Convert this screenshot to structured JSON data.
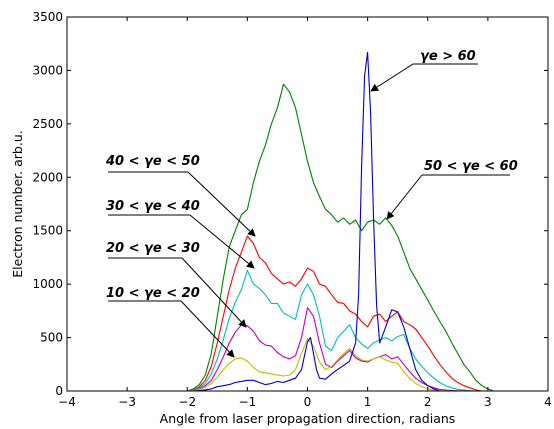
{
  "chart_data": {
    "type": "line",
    "title": "",
    "xlabel": "Angle from laser propagation direction, radians",
    "ylabel": "Electron number. arb.u.",
    "xlim": [
      -4,
      4
    ],
    "ylim": [
      0,
      3500
    ],
    "xticks": [
      -4,
      -3,
      -2,
      -1,
      0,
      1,
      2,
      3,
      4
    ],
    "xtick_labels": [
      "−4",
      "−3",
      "−2",
      "−1",
      "0",
      "1",
      "2",
      "3",
      "4"
    ],
    "yticks": [
      0,
      500,
      1000,
      1500,
      2000,
      2500,
      3000,
      3500
    ],
    "ytick_labels": [
      "0",
      "500",
      "1000",
      "1500",
      "2000",
      "2500",
      "3000",
      "3500"
    ],
    "grid": false,
    "legend": "none",
    "series": [
      {
        "name": "50 < γe < 60",
        "color": "#008000",
        "x": [
          -3.2,
          -2.0,
          -1.9,
          -1.8,
          -1.7,
          -1.6,
          -1.5,
          -1.4,
          -1.3,
          -1.2,
          -1.1,
          -1.0,
          -0.9,
          -0.8,
          -0.7,
          -0.6,
          -0.5,
          -0.4,
          -0.3,
          -0.2,
          -0.1,
          0.0,
          0.1,
          0.2,
          0.3,
          0.4,
          0.5,
          0.6,
          0.7,
          0.8,
          0.9,
          1.0,
          1.1,
          1.2,
          1.3,
          1.4,
          1.5,
          1.6,
          1.7,
          1.8,
          1.9,
          2.0,
          2.1,
          2.2,
          2.3,
          2.4,
          2.5,
          2.6,
          2.7,
          2.8,
          2.9,
          3.0,
          3.1
        ],
        "y": [
          0,
          0,
          20,
          60,
          150,
          350,
          700,
          1050,
          1350,
          1500,
          1650,
          1700,
          1950,
          2150,
          2300,
          2500,
          2650,
          2870,
          2800,
          2650,
          2400,
          2150,
          1950,
          1820,
          1700,
          1650,
          1580,
          1620,
          1560,
          1600,
          1500,
          1580,
          1600,
          1560,
          1620,
          1550,
          1450,
          1300,
          1150,
          1050,
          950,
          850,
          750,
          650,
          560,
          450,
          350,
          250,
          180,
          100,
          50,
          20,
          0
        ]
      },
      {
        "name": "40 < γe < 50",
        "color": "#ff0000",
        "x": [
          -3.2,
          -2.0,
          -1.9,
          -1.8,
          -1.7,
          -1.6,
          -1.5,
          -1.4,
          -1.3,
          -1.2,
          -1.1,
          -1.0,
          -0.9,
          -0.8,
          -0.7,
          -0.6,
          -0.5,
          -0.4,
          -0.3,
          -0.2,
          -0.1,
          0.0,
          0.1,
          0.2,
          0.3,
          0.4,
          0.5,
          0.6,
          0.7,
          0.8,
          0.9,
          1.0,
          1.1,
          1.2,
          1.3,
          1.4,
          1.5,
          1.6,
          1.7,
          1.8,
          1.9,
          2.0,
          2.1,
          2.2,
          2.3,
          2.4,
          2.5,
          2.6,
          2.7,
          2.8,
          2.9
        ],
        "y": [
          0,
          0,
          10,
          40,
          100,
          230,
          450,
          700,
          950,
          1150,
          1300,
          1450,
          1380,
          1250,
          1200,
          1100,
          1050,
          1000,
          1020,
          980,
          1050,
          1150,
          1120,
          1000,
          980,
          900,
          830,
          820,
          750,
          720,
          650,
          600,
          700,
          720,
          650,
          700,
          740,
          650,
          620,
          580,
          500,
          420,
          330,
          250,
          180,
          120,
          80,
          50,
          30,
          10,
          0
        ]
      },
      {
        "name": "30 < γe < 40",
        "color": "#00bfbf",
        "x": [
          -3.2,
          -2.0,
          -1.9,
          -1.8,
          -1.7,
          -1.6,
          -1.5,
          -1.4,
          -1.3,
          -1.2,
          -1.1,
          -1.0,
          -0.9,
          -0.8,
          -0.7,
          -0.6,
          -0.5,
          -0.4,
          -0.3,
          -0.2,
          -0.1,
          0.0,
          0.1,
          0.2,
          0.3,
          0.4,
          0.5,
          0.6,
          0.7,
          0.8,
          0.9,
          1.0,
          1.1,
          1.2,
          1.3,
          1.4,
          1.5,
          1.6,
          1.7,
          1.8,
          1.9,
          2.0,
          2.1,
          2.2,
          2.3,
          2.4,
          2.5,
          2.6,
          2.7,
          2.8
        ],
        "y": [
          0,
          0,
          10,
          30,
          70,
          160,
          300,
          480,
          680,
          830,
          950,
          1130,
          1000,
          960,
          900,
          820,
          820,
          730,
          700,
          670,
          900,
          1000,
          900,
          700,
          420,
          380,
          500,
          560,
          620,
          500,
          440,
          400,
          450,
          480,
          500,
          470,
          510,
          530,
          400,
          300,
          230,
          170,
          120,
          80,
          50,
          30,
          15,
          10,
          5,
          0
        ]
      },
      {
        "name": "20 < γe < 30",
        "color": "#bf00bf",
        "x": [
          -3.2,
          -2.0,
          -1.9,
          -1.8,
          -1.7,
          -1.6,
          -1.5,
          -1.4,
          -1.3,
          -1.2,
          -1.1,
          -1.0,
          -0.9,
          -0.8,
          -0.7,
          -0.6,
          -0.5,
          -0.4,
          -0.3,
          -0.2,
          -0.1,
          0.0,
          0.1,
          0.2,
          0.3,
          0.4,
          0.5,
          0.6,
          0.7,
          0.8,
          0.9,
          1.0,
          1.1,
          1.2,
          1.3,
          1.4,
          1.5,
          1.6,
          1.7,
          1.8,
          1.9,
          2.0,
          2.1,
          2.2,
          2.3,
          2.4,
          2.5,
          2.6
        ],
        "y": [
          0,
          0,
          8,
          20,
          50,
          100,
          200,
          320,
          450,
          550,
          620,
          610,
          560,
          470,
          430,
          420,
          360,
          320,
          300,
          330,
          500,
          780,
          700,
          450,
          250,
          220,
          280,
          330,
          380,
          310,
          280,
          270,
          300,
          320,
          340,
          300,
          320,
          250,
          180,
          120,
          80,
          50,
          30,
          15,
          8,
          4,
          2,
          0
        ]
      },
      {
        "name": "10 < γe < 20",
        "color": "#bfbf00",
        "x": [
          -3.2,
          -2.0,
          -1.9,
          -1.8,
          -1.7,
          -1.6,
          -1.5,
          -1.4,
          -1.3,
          -1.2,
          -1.1,
          -1.0,
          -0.9,
          -0.8,
          -0.7,
          -0.6,
          -0.5,
          -0.4,
          -0.3,
          -0.2,
          -0.1,
          0.0,
          0.1,
          0.2,
          0.3,
          0.4,
          0.5,
          0.6,
          0.7,
          0.8,
          0.9,
          1.0,
          1.1,
          1.2,
          1.3,
          1.4,
          1.5,
          1.6,
          1.7,
          1.8,
          1.9,
          2.0,
          2.1,
          2.2,
          2.3,
          2.4
        ],
        "y": [
          0,
          0,
          5,
          15,
          35,
          70,
          130,
          200,
          260,
          300,
          310,
          280,
          220,
          180,
          170,
          160,
          150,
          140,
          150,
          200,
          350,
          490,
          420,
          270,
          200,
          230,
          290,
          350,
          400,
          330,
          290,
          280,
          300,
          320,
          290,
          270,
          260,
          180,
          120,
          70,
          40,
          20,
          10,
          5,
          2,
          0
        ]
      },
      {
        "name": "γe > 60",
        "color": "#0000cc",
        "x": [
          -3.2,
          -1.9,
          -1.8,
          -1.7,
          -1.6,
          -1.5,
          -1.4,
          -1.3,
          -1.2,
          -1.1,
          -1.0,
          -0.9,
          -0.8,
          -0.7,
          -0.6,
          -0.5,
          -0.4,
          -0.3,
          -0.2,
          -0.1,
          0.0,
          0.05,
          0.1,
          0.15,
          0.2,
          0.3,
          0.4,
          0.5,
          0.6,
          0.7,
          0.8,
          0.85,
          0.9,
          0.95,
          1.0,
          1.05,
          1.1,
          1.15,
          1.2,
          1.3,
          1.4,
          1.5,
          1.6,
          1.7,
          1.8,
          1.9,
          2.0,
          2.1,
          2.2
        ],
        "y": [
          0,
          0,
          5,
          10,
          20,
          40,
          50,
          60,
          80,
          90,
          100,
          100,
          80,
          60,
          70,
          90,
          80,
          100,
          120,
          200,
          460,
          500,
          350,
          200,
          120,
          110,
          160,
          200,
          240,
          280,
          450,
          900,
          2100,
          2950,
          3170,
          2600,
          1600,
          800,
          450,
          600,
          760,
          740,
          600,
          400,
          200,
          100,
          50,
          20,
          0
        ]
      }
    ],
    "annotations": [
      {
        "text": "γe > 60"
      },
      {
        "text": "50 < γe < 60"
      },
      {
        "text": "40 < γe < 50"
      },
      {
        "text": "30 < γe < 40"
      },
      {
        "text": "20 < γe < 30"
      },
      {
        "text": "10 < γe < 20"
      }
    ]
  }
}
